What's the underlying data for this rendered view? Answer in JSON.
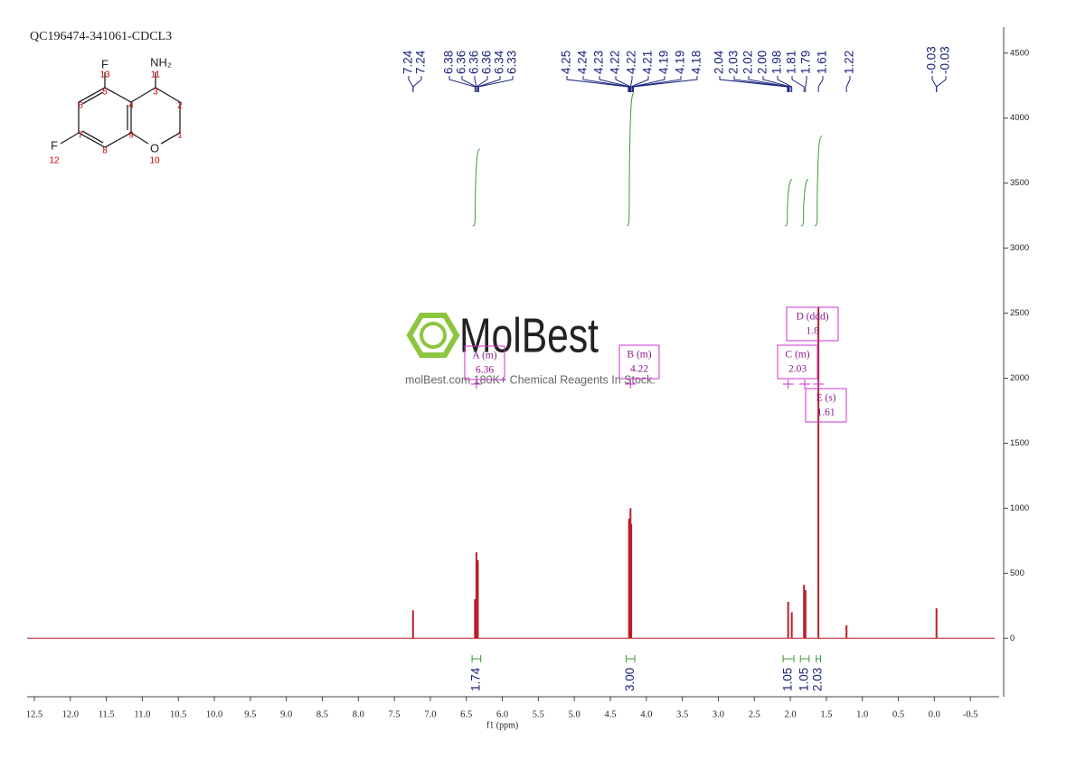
{
  "chart_data": {
    "type": "nmr",
    "title": "QC196474-341061-CDCL3",
    "xlabel": "f1 (ppm)",
    "xlim": [
      12.6,
      -0.9
    ],
    "ylim": [
      -450,
      4700
    ],
    "xticks": [
      12.5,
      {
        "value": 12,
        "label": "12.0"
      },
      11.5,
      {
        "value": 11,
        "label": "11.0"
      },
      10.5,
      {
        "value": 10,
        "label": "10.0"
      },
      9.5,
      {
        "value": 9,
        "label": "9.0"
      },
      8.5,
      {
        "value": 8,
        "label": "8.0"
      },
      7.5,
      {
        "value": 7,
        "label": "7.0"
      },
      6.5,
      {
        "value": 6,
        "label": "6.0"
      },
      5.5,
      {
        "value": 5,
        "label": "5.0"
      },
      4.5,
      {
        "value": 4,
        "label": "4.0"
      },
      3.5,
      {
        "value": 3,
        "label": "3.0"
      },
      2.5,
      {
        "value": 2,
        "label": "2.0"
      },
      1.5,
      {
        "value": 1,
        "label": "1.0"
      },
      0.5,
      {
        "value": 0,
        "label": "0.0"
      },
      -0.5
    ],
    "yticks": [
      0,
      500,
      1000,
      1500,
      2000,
      2500,
      3000,
      3500,
      4000,
      4500
    ],
    "color": "#b8202a",
    "peaks": {
      "x": [
        7.24,
        6.38,
        6.36,
        6.34,
        4.24,
        4.22,
        4.21,
        2.03,
        1.98,
        1.81,
        1.79,
        1.61,
        1.22,
        -0.03
      ],
      "values": [
        215,
        300,
        660,
        600,
        920,
        1000,
        880,
        280,
        200,
        410,
        370,
        2550,
        100,
        230
      ]
    },
    "peak_labels": [
      7.24,
      7.24,
      6.38,
      6.36,
      6.36,
      6.36,
      6.34,
      6.33,
      4.25,
      4.24,
      4.23,
      4.22,
      4.22,
      4.21,
      4.19,
      4.19,
      4.18,
      2.04,
      2.03,
      2.02,
      {
        "value": 2.0,
        "label": "2.00"
      },
      1.98,
      1.81,
      1.79,
      1.61,
      1.22,
      -0.03,
      -0.03
    ],
    "integrals": [
      {
        "range": [
          6.42,
          6.3
        ],
        "value": 1.74
      },
      {
        "range": [
          4.28,
          4.16
        ],
        "value": 3.0,
        "label": "3.00"
      },
      {
        "range": [
          2.1,
          1.95
        ],
        "value": 1.05
      },
      {
        "range": [
          1.86,
          1.74
        ],
        "value": 1.05
      },
      {
        "range": [
          1.64,
          1.58
        ],
        "value": 2.03
      }
    ],
    "multiplets": [
      {
        "label": "A (m)",
        "shift": 6.36
      },
      {
        "label": "B (m)",
        "shift": 4.22
      },
      {
        "label": "C (m)",
        "shift": 2.03
      },
      {
        "label": "D (ddd)",
        "shift": 1.8
      },
      {
        "label": "E (s)",
        "shift": 1.61
      }
    ]
  },
  "structure": {
    "atoms": [
      "F",
      "13",
      "5",
      "NH₂",
      "11",
      "3",
      "2",
      "6",
      "4",
      "F",
      "7",
      "9",
      "1",
      "12",
      "8",
      "O",
      "10"
    ]
  },
  "watermark": {
    "brand": "MolBest",
    "tagline": "molBest.com 180K+ Chemical Reagents In Stock."
  }
}
